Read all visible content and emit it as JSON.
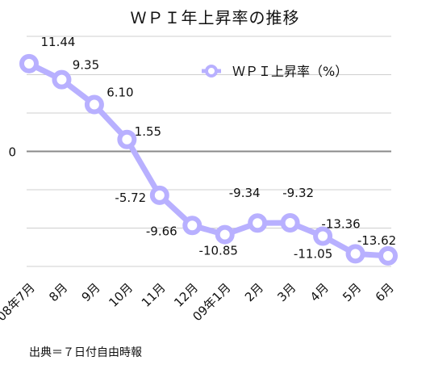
{
  "chart_data": {
    "type": "line",
    "title": "ＷＰＩ年上昇率の推移",
    "series": [
      {
        "name": "ＷＰＩ上昇率（%）",
        "color": "#b8b0ff",
        "values": [
          11.44,
          9.35,
          6.1,
          1.55,
          -5.72,
          -9.66,
          -10.85,
          -9.34,
          -9.32,
          -11.05,
          -13.36,
          -13.62
        ]
      }
    ],
    "value_labels": [
      "11.44",
      "9.35",
      "6.10",
      "1.55",
      "-5.72",
      "-9.66",
      "-10.85",
      "-9.34",
      "-9.32",
      "-11.05",
      "-13.36",
      "-13.62"
    ],
    "categories": [
      "08年7月",
      "8月",
      "9月",
      "10月",
      "11月",
      "12月",
      "09年1月",
      "2月",
      "3月",
      "4月",
      "5月",
      "6月"
    ],
    "y_tick_labels": [
      "0"
    ],
    "ylim": [
      -15,
      15
    ],
    "grid": true
  },
  "source": "出典＝７日付自由時報"
}
